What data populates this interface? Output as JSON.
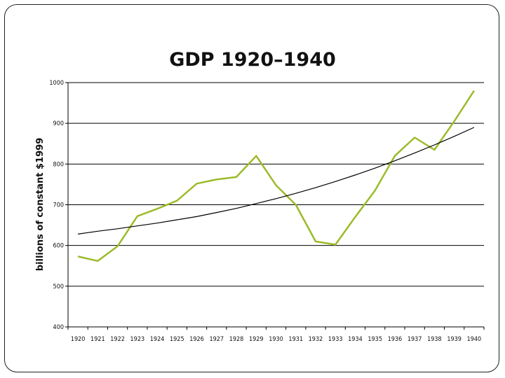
{
  "chart_data": {
    "type": "line",
    "title": "GDP 1920–1940",
    "xlabel": "",
    "ylabel": "billions of constant $1999",
    "x": [
      "1920",
      "1921",
      "1922",
      "1923",
      "1924",
      "1925",
      "1926",
      "1927",
      "1928",
      "1929",
      "1930",
      "1931",
      "1932",
      "1933",
      "1934",
      "1935",
      "1936",
      "1937",
      "1938",
      "1939",
      "1940"
    ],
    "ylim": [
      400,
      1000
    ],
    "yticks": [
      400,
      500,
      600,
      700,
      800,
      900,
      1000
    ],
    "grid": "horizontal",
    "series": [
      {
        "color": "#9bbb2a",
        "values": [
          573,
          562,
          598,
          672,
          690,
          710,
          752,
          762,
          768,
          820,
          748,
          700,
          610,
          602,
          670,
          735,
          820,
          865,
          835,
          905,
          980
        ]
      },
      {
        "color": "#000000",
        "values": [
          628,
          635,
          641,
          648,
          655,
          663,
          671,
          681,
          691,
          703,
          715,
          728,
          742,
          757,
          773,
          790,
          808,
          827,
          847,
          868,
          890
        ]
      }
    ]
  }
}
